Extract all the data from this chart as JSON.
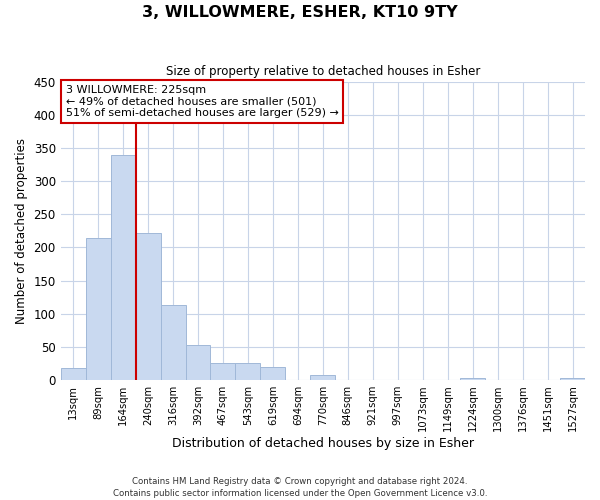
{
  "title": "3, WILLOWMERE, ESHER, KT10 9TY",
  "subtitle": "Size of property relative to detached houses in Esher",
  "xlabel": "Distribution of detached houses by size in Esher",
  "ylabel": "Number of detached properties",
  "bar_labels": [
    "13sqm",
    "89sqm",
    "164sqm",
    "240sqm",
    "316sqm",
    "392sqm",
    "467sqm",
    "543sqm",
    "619sqm",
    "694sqm",
    "770sqm",
    "846sqm",
    "921sqm",
    "997sqm",
    "1073sqm",
    "1149sqm",
    "1224sqm",
    "1300sqm",
    "1376sqm",
    "1451sqm",
    "1527sqm"
  ],
  "bar_values": [
    18,
    215,
    340,
    222,
    113,
    53,
    26,
    25,
    20,
    0,
    7,
    0,
    0,
    0,
    0,
    0,
    3,
    0,
    0,
    0,
    3
  ],
  "bar_color": "#c9d9f0",
  "bar_edge_color": "#a0b8d8",
  "vline_index": 2,
  "vline_color": "#cc0000",
  "ylim": [
    0,
    450
  ],
  "yticks": [
    0,
    50,
    100,
    150,
    200,
    250,
    300,
    350,
    400,
    450
  ],
  "annotation_title": "3 WILLOWMERE: 225sqm",
  "annotation_line1": "← 49% of detached houses are smaller (501)",
  "annotation_line2": "51% of semi-detached houses are larger (529) →",
  "annotation_box_color": "#ffffff",
  "annotation_box_edge": "#cc0000",
  "footnote1": "Contains HM Land Registry data © Crown copyright and database right 2024.",
  "footnote2": "Contains public sector information licensed under the Open Government Licence v3.0.",
  "background_color": "#ffffff",
  "grid_color": "#c8d4e8"
}
